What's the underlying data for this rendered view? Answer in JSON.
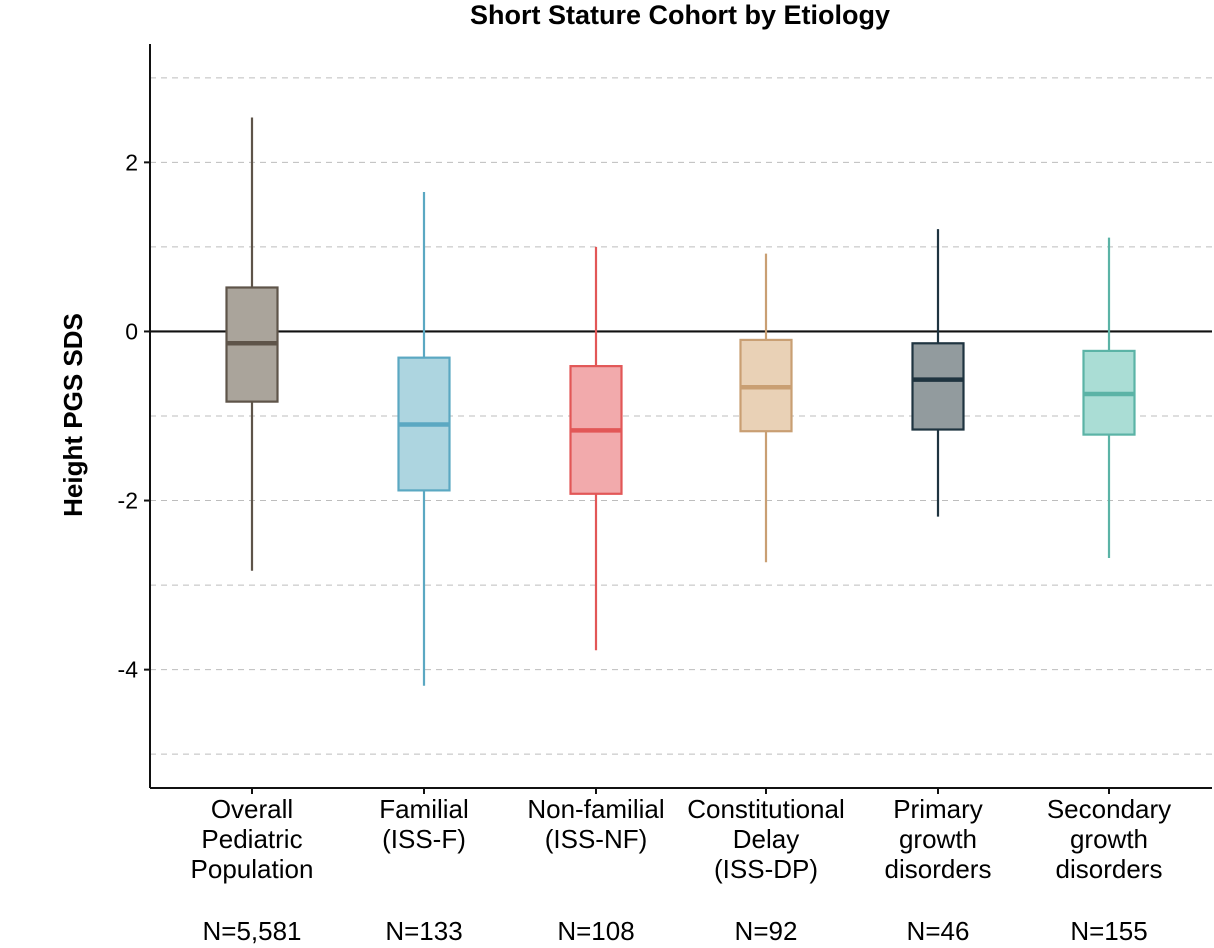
{
  "chart_data": {
    "type": "box",
    "title": "Short Stature Cohort by Etiology",
    "xlabel": "",
    "ylabel": "Height PGS SDS",
    "ylim": [
      -5.4,
      3.4
    ],
    "yticks": [
      2,
      0,
      -2,
      -4
    ],
    "ytick_labels": [
      "2",
      "0",
      "-2",
      "-4"
    ],
    "grid": "dashed horizontal",
    "reference_line": 0,
    "categories": [
      {
        "lines": [
          "Overall",
          "Pediatric",
          "Population"
        ],
        "n_label": "N=5,581",
        "min": -2.83,
        "q1": -0.83,
        "median": -0.14,
        "q3": 0.52,
        "max": 2.53,
        "color": "#5e5449",
        "fill": "#aaa49b"
      },
      {
        "lines": [
          "Familial",
          "(ISS-F)"
        ],
        "n_label": "N=133",
        "min": -4.19,
        "q1": -1.88,
        "median": -1.1,
        "q3": -0.31,
        "max": 1.65,
        "color": "#5ba8c2",
        "fill": "#add5e0"
      },
      {
        "lines": [
          "Non-familial",
          "(ISS-NF)"
        ],
        "n_label": "N=108",
        "min": -3.77,
        "q1": -1.92,
        "median": -1.17,
        "q3": -0.41,
        "max": 1.0,
        "color": "#e25757",
        "fill": "#f2aaac"
      },
      {
        "lines": [
          "Constitutional",
          "Delay",
          "(ISS-DP)"
        ],
        "n_label": "N=92",
        "min": -2.73,
        "q1": -1.18,
        "median": -0.66,
        "q3": -0.1,
        "max": 0.92,
        "color": "#c99f73",
        "fill": "#e9d1b6"
      },
      {
        "lines": [
          "Primary",
          "growth",
          "disorders"
        ],
        "n_label": "N=46",
        "min": -2.19,
        "q1": -1.16,
        "median": -0.57,
        "q3": -0.14,
        "max": 1.21,
        "color": "#1f3440",
        "fill": "#929b9e"
      },
      {
        "lines": [
          "Secondary",
          "growth",
          "disorders"
        ],
        "n_label": "N=155",
        "min": -2.68,
        "q1": -1.22,
        "median": -0.74,
        "q3": -0.23,
        "max": 1.11,
        "color": "#5bb3a6",
        "fill": "#aaddd5"
      }
    ]
  }
}
